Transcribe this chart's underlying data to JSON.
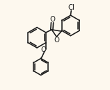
{
  "bg_color": "#fdf8ee",
  "bond_color": "#1a1a1a",
  "text_color": "#1a1a1a",
  "line_width": 1.15,
  "font_size": 6.8,
  "figsize": [
    1.58,
    1.3
  ],
  "dpi": 100,
  "xlim": [
    -0.08,
    1.05
  ],
  "ylim": [
    -0.72,
    0.72
  ]
}
